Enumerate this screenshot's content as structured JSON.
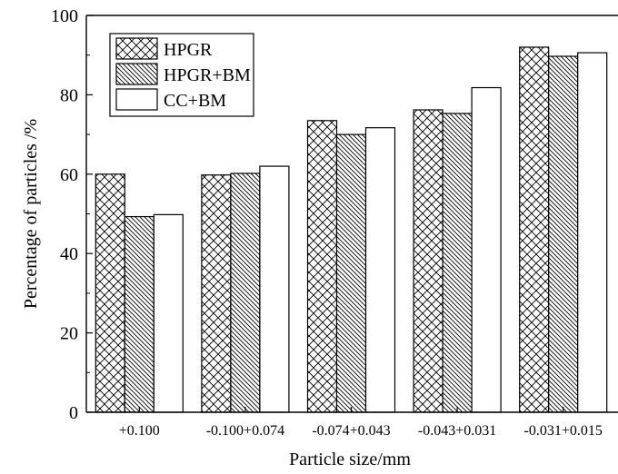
{
  "chart_data": {
    "type": "bar",
    "title": "",
    "xlabel": "Particle size/mm",
    "ylabel": "Percentage of particles /%",
    "ylim": [
      0,
      100
    ],
    "yticks": [
      0,
      20,
      40,
      60,
      80,
      100
    ],
    "grid": false,
    "legend_position": "top-left",
    "categories": [
      "+0.100",
      "-0.100+0.074",
      "-0.074+0.043",
      "-0.043+0.031",
      "-0.031+0.015"
    ],
    "series": [
      {
        "name": "HPGR",
        "pattern": "crosshatch",
        "values": [
          60.0,
          59.8,
          73.5,
          76.2,
          92.0
        ]
      },
      {
        "name": "HPGR+BM",
        "pattern": "diagonal",
        "values": [
          49.3,
          60.2,
          70.0,
          75.3,
          89.7
        ]
      },
      {
        "name": "CC+BM",
        "pattern": "none",
        "values": [
          49.8,
          62.0,
          71.7,
          81.8,
          90.6
        ]
      }
    ]
  }
}
